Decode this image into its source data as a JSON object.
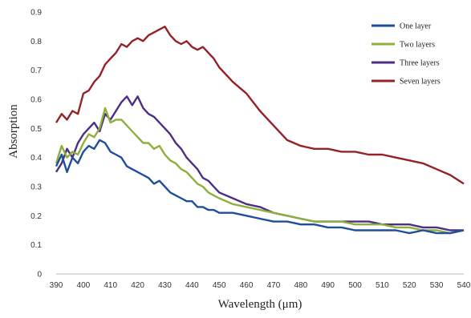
{
  "chart_data": {
    "type": "line",
    "xlabel": "Wavelength (μm)",
    "ylabel": "Absorption",
    "xlim": [
      390,
      540
    ],
    "ylim": [
      0,
      0.9
    ],
    "x_ticks": [
      "390",
      "400",
      "410",
      "420",
      "430",
      "440",
      "450",
      "460",
      "470",
      "480",
      "490",
      "500",
      "510",
      "520",
      "530",
      "540"
    ],
    "y_ticks": [
      "0",
      "0.1",
      "0.2",
      "0.3",
      "0.4",
      "0.5",
      "0.6",
      "0.7",
      "0.8",
      "0.9"
    ],
    "grid": false,
    "legend_position": "top-right",
    "series": [
      {
        "name": "One layer",
        "color": "#1f4e9a",
        "x": [
          390,
          392,
          394,
          396,
          398,
          400,
          402,
          404,
          406,
          408,
          410,
          412,
          414,
          416,
          418,
          420,
          422,
          424,
          426,
          428,
          430,
          432,
          434,
          436,
          438,
          440,
          442,
          444,
          446,
          448,
          450,
          455,
          460,
          465,
          470,
          475,
          480,
          485,
          490,
          495,
          500,
          505,
          510,
          515,
          520,
          525,
          530,
          535,
          540
        ],
        "y": [
          0.37,
          0.41,
          0.35,
          0.4,
          0.38,
          0.42,
          0.44,
          0.43,
          0.46,
          0.45,
          0.42,
          0.41,
          0.4,
          0.37,
          0.36,
          0.35,
          0.34,
          0.33,
          0.31,
          0.32,
          0.3,
          0.28,
          0.27,
          0.26,
          0.25,
          0.25,
          0.23,
          0.23,
          0.22,
          0.22,
          0.21,
          0.21,
          0.2,
          0.19,
          0.18,
          0.18,
          0.17,
          0.17,
          0.16,
          0.16,
          0.15,
          0.15,
          0.15,
          0.15,
          0.14,
          0.15,
          0.14,
          0.14,
          0.15
        ]
      },
      {
        "name": "Two layers",
        "color": "#8db03d",
        "x": [
          390,
          392,
          394,
          396,
          398,
          400,
          402,
          404,
          406,
          408,
          410,
          412,
          414,
          416,
          418,
          420,
          422,
          424,
          426,
          428,
          430,
          432,
          434,
          436,
          438,
          440,
          442,
          444,
          446,
          448,
          450,
          455,
          460,
          465,
          470,
          475,
          480,
          485,
          490,
          495,
          500,
          505,
          510,
          515,
          520,
          525,
          530,
          535,
          540
        ],
        "y": [
          0.38,
          0.44,
          0.4,
          0.42,
          0.41,
          0.45,
          0.48,
          0.47,
          0.5,
          0.57,
          0.52,
          0.53,
          0.53,
          0.51,
          0.49,
          0.47,
          0.45,
          0.45,
          0.43,
          0.44,
          0.41,
          0.39,
          0.38,
          0.36,
          0.35,
          0.33,
          0.31,
          0.3,
          0.28,
          0.27,
          0.26,
          0.24,
          0.23,
          0.22,
          0.21,
          0.2,
          0.19,
          0.18,
          0.18,
          0.18,
          0.17,
          0.17,
          0.17,
          0.16,
          0.16,
          0.15,
          0.15,
          0.14,
          0.15
        ]
      },
      {
        "name": "Three layers",
        "color": "#4e2d85",
        "x": [
          390,
          392,
          394,
          396,
          398,
          400,
          402,
          404,
          406,
          408,
          410,
          412,
          414,
          416,
          418,
          420,
          422,
          424,
          426,
          428,
          430,
          432,
          434,
          436,
          438,
          440,
          442,
          444,
          446,
          448,
          450,
          455,
          460,
          465,
          470,
          475,
          480,
          485,
          490,
          495,
          500,
          505,
          510,
          515,
          520,
          525,
          530,
          535,
          540
        ],
        "y": [
          0.35,
          0.38,
          0.43,
          0.4,
          0.45,
          0.48,
          0.5,
          0.52,
          0.49,
          0.55,
          0.53,
          0.56,
          0.59,
          0.61,
          0.58,
          0.61,
          0.57,
          0.55,
          0.54,
          0.52,
          0.5,
          0.48,
          0.45,
          0.43,
          0.4,
          0.38,
          0.36,
          0.33,
          0.32,
          0.3,
          0.28,
          0.26,
          0.24,
          0.23,
          0.21,
          0.2,
          0.19,
          0.18,
          0.18,
          0.18,
          0.18,
          0.18,
          0.17,
          0.17,
          0.17,
          0.16,
          0.16,
          0.15,
          0.15
        ]
      },
      {
        "name": "Seven layers",
        "color": "#952226",
        "x": [
          390,
          392,
          394,
          396,
          398,
          400,
          402,
          404,
          406,
          408,
          410,
          412,
          414,
          416,
          418,
          420,
          422,
          424,
          426,
          428,
          430,
          432,
          434,
          436,
          438,
          440,
          442,
          444,
          446,
          448,
          450,
          455,
          460,
          465,
          470,
          475,
          480,
          485,
          490,
          495,
          500,
          505,
          510,
          515,
          520,
          525,
          530,
          535,
          540
        ],
        "y": [
          0.52,
          0.55,
          0.53,
          0.56,
          0.55,
          0.62,
          0.63,
          0.66,
          0.68,
          0.72,
          0.74,
          0.76,
          0.79,
          0.78,
          0.8,
          0.81,
          0.8,
          0.82,
          0.83,
          0.84,
          0.85,
          0.82,
          0.8,
          0.79,
          0.8,
          0.78,
          0.77,
          0.78,
          0.76,
          0.74,
          0.71,
          0.66,
          0.62,
          0.56,
          0.51,
          0.46,
          0.44,
          0.43,
          0.43,
          0.42,
          0.42,
          0.41,
          0.41,
          0.4,
          0.39,
          0.38,
          0.36,
          0.34,
          0.31
        ]
      }
    ]
  }
}
